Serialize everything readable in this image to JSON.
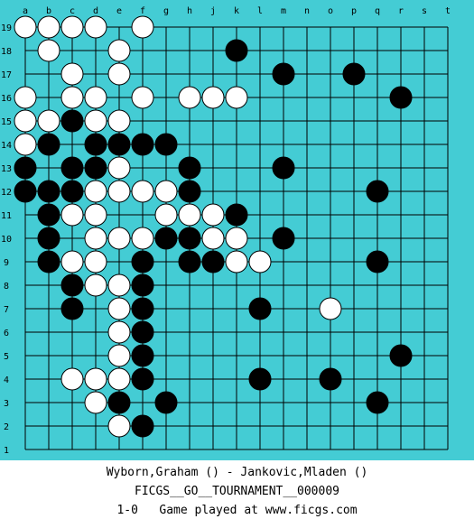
{
  "board": {
    "size": 19,
    "background_color": "#44CCD4",
    "line_color": "#000000",
    "black_color": "#000000",
    "white_color": "#FFFFFF",
    "column_labels": [
      "a",
      "b",
      "c",
      "d",
      "e",
      "f",
      "g",
      "h",
      "j",
      "k",
      "l",
      "m",
      "n",
      "o",
      "p",
      "q",
      "r",
      "s",
      "t"
    ],
    "row_labels": [
      "19",
      "18",
      "17",
      "16",
      "15",
      "14",
      "13",
      "12",
      "11",
      "10",
      "9",
      "8",
      "7",
      "6",
      "5",
      "4",
      "3",
      "2",
      "1"
    ],
    "black_stones": [
      "k18",
      "m17",
      "p17",
      "r16",
      "c15",
      "b14",
      "d14",
      "e14",
      "f14",
      "g14",
      "a13",
      "c13",
      "d13",
      "h13",
      "m13",
      "a12",
      "b12",
      "c12",
      "h12",
      "q12",
      "b11",
      "k11",
      "b10",
      "g10",
      "h10",
      "m10",
      "b9",
      "f9",
      "h9",
      "j9",
      "q9",
      "c8",
      "f8",
      "c7",
      "f7",
      "l7",
      "f6",
      "f5",
      "r5",
      "f4",
      "l4",
      "o4",
      "e3",
      "g3",
      "q3",
      "f2"
    ],
    "white_stones": [
      "a19",
      "b19",
      "c19",
      "d19",
      "f19",
      "b18",
      "e18",
      "c17",
      "e17",
      "a16",
      "c16",
      "d16",
      "f16",
      "h16",
      "j16",
      "k16",
      "a15",
      "b15",
      "d15",
      "e15",
      "a14",
      "e13",
      "d12",
      "e12",
      "f12",
      "g12",
      "c11",
      "d11",
      "g11",
      "h11",
      "j11",
      "d10",
      "e10",
      "f10",
      "j10",
      "k10",
      "c9",
      "d9",
      "k9",
      "l9",
      "d8",
      "e8",
      "e7",
      "o7",
      "e6",
      "e5",
      "c4",
      "d4",
      "e4",
      "d3",
      "e2"
    ]
  },
  "caption": {
    "players": "Wyborn,Graham () - Jankovic,Mladen ()",
    "tournament": "FICGS__GO__TOURNAMENT__000009",
    "result_line": "1-0   Game played at www.ficgs.com"
  }
}
